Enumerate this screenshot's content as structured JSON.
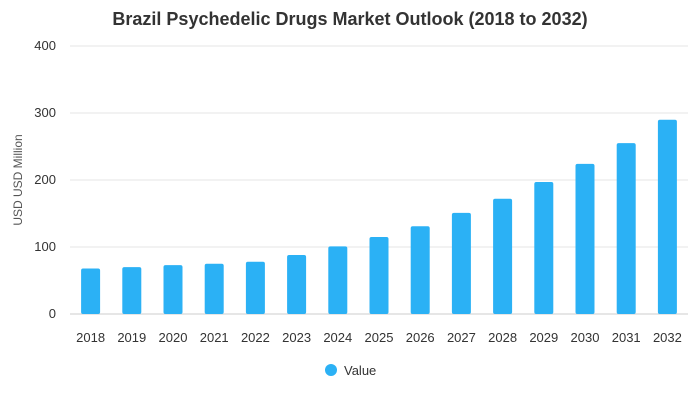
{
  "chart_data": {
    "type": "bar",
    "title": "Brazil Psychedelic Drugs Market Outlook (2018 to 2032)",
    "xlabel": "",
    "ylabel": "USD USD Million",
    "categories": [
      "2018",
      "2019",
      "2020",
      "2021",
      "2022",
      "2023",
      "2024",
      "2025",
      "2026",
      "2027",
      "2028",
      "2029",
      "2030",
      "2031",
      "2032"
    ],
    "series": [
      {
        "name": "Value",
        "color": "#2bb1f5",
        "values": [
          68,
          70,
          73,
          75,
          78,
          88,
          101,
          115,
          131,
          151,
          172,
          197,
          224,
          255,
          290
        ]
      }
    ],
    "yticks": [
      0,
      100,
      200,
      300,
      400
    ],
    "ylim": [
      0,
      400
    ],
    "grid": true,
    "legend_position": "bottom"
  }
}
